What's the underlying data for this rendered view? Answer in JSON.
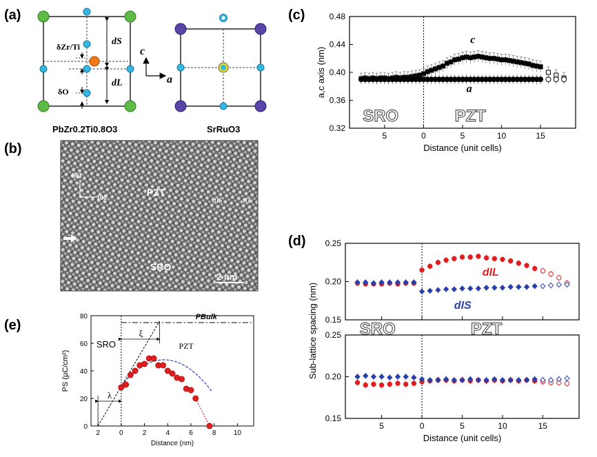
{
  "panel_labels": {
    "a": "(a)",
    "b": "(b)",
    "c": "(c)",
    "d": "(d)",
    "e": "(e)"
  },
  "panel_a": {
    "left_caption": "PbZr0.2Ti0.8O3",
    "right_caption": "SrRuO3",
    "delta_zrti": "δZr/Ti",
    "delta_o": "δO",
    "d_s": "dS",
    "d_l": "dL",
    "axis_c": "c",
    "axis_a": "a"
  },
  "panel_b": {
    "label_pzt": "PZT",
    "label_sro": "SRO",
    "dir_001": "001",
    "dir_100": "100",
    "d_is": "dIS",
    "d_il": "dIL",
    "scale": "2 nm"
  },
  "chart_data": [
    {
      "type": "scatter",
      "panel": "c",
      "title": "",
      "xlabel": "Distance (unit cells)",
      "ylabel": "a,c axis (nm)",
      "ylim": [
        0.32,
        0.48
      ],
      "yticks": [
        "0.32",
        "0.36",
        "0.40",
        "0.44",
        "0.48"
      ],
      "xticks": [
        "5",
        "0",
        "5",
        "10",
        "15"
      ],
      "region_left": "SRO",
      "region_right": "PZT",
      "series": [
        {
          "name": "c",
          "x": [
            -8,
            -7.5,
            -7,
            -6.5,
            -6,
            -5.5,
            -5,
            -4.5,
            -4,
            -3.5,
            -3,
            -2.5,
            -2,
            -1.5,
            -1,
            -0.5,
            0,
            0.5,
            1,
            1.5,
            2,
            2.5,
            3,
            3.5,
            4,
            4.5,
            5,
            5.5,
            6,
            6.5,
            7,
            7.5,
            8,
            8.5,
            9,
            9.5,
            10,
            10.5,
            11,
            11.5,
            12,
            12.5,
            13,
            13.5,
            14,
            14.5,
            15,
            16,
            17,
            18
          ],
          "values": [
            0.391,
            0.392,
            0.391,
            0.392,
            0.391,
            0.392,
            0.392,
            0.391,
            0.392,
            0.393,
            0.392,
            0.393,
            0.393,
            0.394,
            0.395,
            0.396,
            0.398,
            0.401,
            0.403,
            0.405,
            0.407,
            0.409,
            0.413,
            0.415,
            0.418,
            0.419,
            0.421,
            0.422,
            0.421,
            0.422,
            0.423,
            0.422,
            0.421,
            0.42,
            0.42,
            0.419,
            0.418,
            0.418,
            0.417,
            0.416,
            0.415,
            0.414,
            0.413,
            0.412,
            0.41,
            0.409,
            0.408,
            0.4,
            0.396,
            0.392
          ]
        },
        {
          "name": "a",
          "x": [
            -8,
            -7.5,
            -7,
            -6.5,
            -6,
            -5.5,
            -5,
            -4.5,
            -4,
            -3.5,
            -3,
            -2.5,
            -2,
            -1.5,
            -1,
            -0.5,
            0,
            0.5,
            1,
            1.5,
            2,
            2.5,
            3,
            3.5,
            4,
            4.5,
            5,
            5.5,
            6,
            6.5,
            7,
            7.5,
            8,
            8.5,
            9,
            9.5,
            10,
            10.5,
            11,
            11.5,
            12,
            12.5,
            13,
            13.5,
            14,
            14.5,
            15,
            16,
            17,
            18
          ],
          "values": [
            0.39,
            0.39,
            0.39,
            0.39,
            0.39,
            0.39,
            0.39,
            0.39,
            0.39,
            0.39,
            0.39,
            0.39,
            0.39,
            0.39,
            0.39,
            0.39,
            0.39,
            0.39,
            0.39,
            0.39,
            0.39,
            0.39,
            0.39,
            0.39,
            0.39,
            0.39,
            0.39,
            0.39,
            0.39,
            0.39,
            0.39,
            0.39,
            0.39,
            0.39,
            0.39,
            0.39,
            0.39,
            0.39,
            0.39,
            0.39,
            0.39,
            0.39,
            0.39,
            0.39,
            0.39,
            0.39,
            0.39,
            0.39,
            0.39,
            0.39
          ]
        }
      ]
    },
    {
      "type": "scatter",
      "panel": "d",
      "xlabel": "Distance (unit cells)",
      "ylabel": "Sub-lattice spacing (nm)",
      "ylim": [
        0.15,
        0.25
      ],
      "yticks": [
        "0.15",
        "0.20",
        "0.25"
      ],
      "xticks": [
        "5",
        "0",
        "5",
        "10",
        "15"
      ],
      "region_left": "SRO",
      "region_right": "PZT",
      "label_dil": "dIL",
      "label_dis": "dIS",
      "top_series": [
        {
          "name": "dIL",
          "color": "#e02020",
          "x": [
            -8,
            -7,
            -6,
            -5,
            -4,
            -3,
            -2,
            -1,
            0,
            1,
            2,
            3,
            4,
            5,
            6,
            7,
            8,
            9,
            10,
            11,
            12,
            13,
            14,
            15,
            16,
            17,
            18
          ],
          "values": [
            0.198,
            0.197,
            0.197,
            0.197,
            0.198,
            0.197,
            0.198,
            0.198,
            0.215,
            0.22,
            0.225,
            0.228,
            0.23,
            0.232,
            0.232,
            0.233,
            0.231,
            0.23,
            0.229,
            0.227,
            0.224,
            0.221,
            0.217,
            0.214,
            0.21,
            0.205,
            0.198
          ]
        },
        {
          "name": "dIS",
          "color": "#2a3fa8",
          "x": [
            -8,
            -7,
            -6,
            -5,
            -4,
            -3,
            -2,
            -1,
            0,
            1,
            2,
            3,
            4,
            5,
            6,
            7,
            8,
            9,
            10,
            11,
            12,
            13,
            14,
            15,
            16,
            17,
            18
          ],
          "values": [
            0.199,
            0.199,
            0.198,
            0.199,
            0.199,
            0.199,
            0.199,
            0.199,
            0.187,
            0.188,
            0.189,
            0.19,
            0.19,
            0.191,
            0.191,
            0.191,
            0.192,
            0.192,
            0.192,
            0.193,
            0.193,
            0.193,
            0.194,
            0.194,
            0.195,
            0.196,
            0.196
          ]
        }
      ],
      "bottom_series": [
        {
          "name": "red",
          "color": "#e02020",
          "x": [
            -8,
            -7,
            -6,
            -5,
            -4,
            -3,
            -2,
            -1,
            0,
            1,
            2,
            3,
            4,
            5,
            6,
            7,
            8,
            9,
            10,
            11,
            12,
            13,
            14,
            15,
            16,
            17,
            18
          ],
          "values": [
            0.193,
            0.19,
            0.191,
            0.19,
            0.191,
            0.192,
            0.191,
            0.192,
            0.194,
            0.195,
            0.196,
            0.196,
            0.195,
            0.196,
            0.195,
            0.196,
            0.195,
            0.196,
            0.195,
            0.196,
            0.195,
            0.196,
            0.195,
            0.194,
            0.193,
            0.193,
            0.192
          ]
        },
        {
          "name": "blue",
          "color": "#2a3fa8",
          "x": [
            -8,
            -7,
            -6,
            -5,
            -4,
            -3,
            -2,
            -1,
            0,
            1,
            2,
            3,
            4,
            5,
            6,
            7,
            8,
            9,
            10,
            11,
            12,
            13,
            14,
            15,
            16,
            17,
            18
          ],
          "values": [
            0.2,
            0.201,
            0.2,
            0.2,
            0.199,
            0.2,
            0.2,
            0.199,
            0.197,
            0.196,
            0.196,
            0.197,
            0.196,
            0.196,
            0.197,
            0.196,
            0.196,
            0.197,
            0.196,
            0.196,
            0.196,
            0.196,
            0.197,
            0.196,
            0.196,
            0.197,
            0.198
          ]
        }
      ]
    },
    {
      "type": "scatter",
      "panel": "e",
      "xlabel": "Distance (nm)",
      "ylabel": "PS (µC/cm²)",
      "xlim": [
        -2.6,
        11.4
      ],
      "ylim": [
        0,
        80
      ],
      "xticks": [
        "2",
        "0",
        "2",
        "4",
        "6",
        "8",
        "10"
      ],
      "yticks": [
        "0",
        "20",
        "40",
        "60",
        "80"
      ],
      "label_sro": "SRO",
      "label_pzt": "PZT",
      "label_pbulk": "PBulk",
      "label_lambda": "λ",
      "label_xi": "ξ",
      "p_bulk": 75,
      "points_x": [
        0,
        0.4,
        0.8,
        1.2,
        1.6,
        2.0,
        2.4,
        2.8,
        3.2,
        3.6,
        4.0,
        4.4,
        4.8,
        5.2,
        5.6,
        6.0,
        6.4,
        7.6
      ],
      "points_y": [
        28,
        30,
        37,
        40,
        44,
        45,
        49,
        49,
        44,
        44,
        40,
        38,
        35,
        34,
        27,
        26,
        20,
        0
      ]
    }
  ]
}
